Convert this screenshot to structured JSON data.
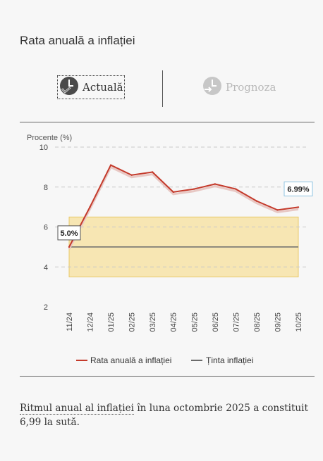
{
  "page": {
    "title": "Rata anuală a inflației"
  },
  "tabs": [
    {
      "label": "Actuală",
      "active": true,
      "icon": "clock-check-icon"
    },
    {
      "label": "Prognoza",
      "active": false,
      "icon": "clock-forecast-icon"
    }
  ],
  "colors": {
    "inflation_line": "#c43a2b",
    "target_line": "#6b6b6b",
    "target_band": "#f7e6b3",
    "target_band_border": "#e8c868",
    "callout_end_border": "#8ec3e0"
  },
  "chart_data": {
    "type": "line",
    "ylabel": "Procente (%)",
    "ylim": [
      2,
      10
    ],
    "yticks": [
      2,
      4,
      6,
      8,
      10
    ],
    "grid": "horizontal-dashed",
    "categories": [
      "11/24",
      "12/24",
      "01/25",
      "02/25",
      "03/25",
      "04/25",
      "05/25",
      "06/25",
      "07/25",
      "08/25",
      "09/25",
      "10/25"
    ],
    "series": [
      {
        "name": "Rata anuală a inflației",
        "values": [
          5.0,
          7.0,
          9.1,
          8.6,
          8.75,
          7.75,
          7.9,
          8.15,
          7.9,
          7.3,
          6.85,
          6.99
        ]
      },
      {
        "name": "Ținta inflației",
        "values": [
          5.0,
          5.0,
          5.0,
          5.0,
          5.0,
          5.0,
          5.0,
          5.0,
          5.0,
          5.0,
          5.0,
          5.0
        ]
      }
    ],
    "target_band": [
      3.5,
      6.5
    ],
    "callouts": [
      {
        "label": "5.0%",
        "category": "11/24",
        "value": 5.0
      },
      {
        "label": "6.99%",
        "category": "10/25",
        "value": 6.99
      }
    ],
    "legend": [
      "Rata anuală a inflației",
      "Ținta inflației"
    ],
    "legend_position": "bottom"
  },
  "footer": {
    "linked_text": "Ritmul anual al inflației",
    "rest_text": " în luna octombrie 2025 a constituit 6,99 la sută."
  }
}
